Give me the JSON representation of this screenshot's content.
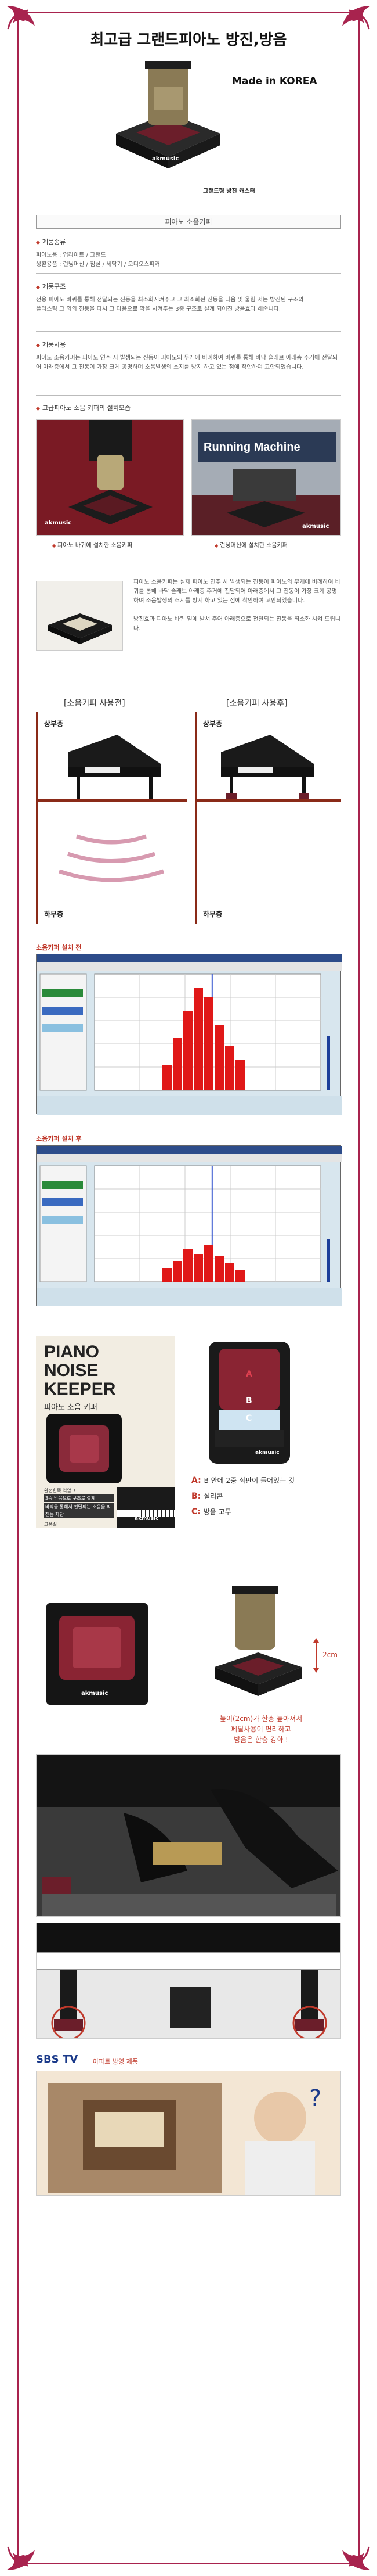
{
  "header": {
    "title": "최고급 그랜드피아노 방진,방음",
    "made_in": "Made in KOREA",
    "hero_caption": "그랜드형 방진 캐스터",
    "hero_watermark": "akmusic"
  },
  "section_bar": "피아노 소음키퍼",
  "features": [
    {
      "title": "제품종류",
      "body": "피아노용 : 업라이트 / 그랜드\n생활용품 : 런닝머신 / 침실 / 세탁기 / 오디오스피커"
    },
    {
      "title": "제품구조",
      "body": "전용 피아노 바퀴를 통해 전달되는 진동을 최소화시켜주고 그 최소화된 진동을 다음 및 울림 저는 방진된 구조와\n플라스틱 그 외의 진동을 다시 그 다음으로 막을 시켜주는 3중 구조로 설계 되어진 방음효과 해줍니다."
    },
    {
      "title": "제품사용",
      "body": "피아노 소음키퍼는 피아노 연주 시 발생되는 진동이 피아노의 무게에 비례하여 바퀴를 통해 바닥 슬래브 아래층 주거에 전달되어 아래층에서 그 진동이 가장 크게 공명하며 소음발생의 소지를 방지 하고 있는 점에 착안하여 고안되었습니다."
    },
    {
      "title": "고급피아노 소음 키퍼의 설치모습",
      "body": ""
    }
  ],
  "install_photos": [
    {
      "caption": "피아노 바퀴에 설치한 소음키퍼",
      "badge": "akmusic"
    },
    {
      "caption": "런닝머신에 설치한 소음키퍼",
      "badge": "akmusic",
      "sign": "Running Machine"
    }
  ],
  "keeper_desc": "피아노 소음키퍼는 실제 피아노 연주 시 발생되는 진동이 피아노의 무게에 비례하여 바퀴를 통해 바닥 슬래브 아래층 주거에 전달되어 아래층에서 그 진동이 가장 크게 공명하며 소음발생의 소지를 방지 하고 있는 점에 착안하여 고안되었습니다.\n\n방진효과 피아노 바퀴 밑에 받쳐 주어 아래층으로 전달되는 진동을 최소화 시켜 드립니다.",
  "before_after": {
    "before_label": "[소음키퍼 사용전]",
    "after_label": "[소음키퍼 사용후]",
    "top_label": "상부층",
    "bottom_label": "하부층"
  },
  "charts": [
    {
      "heading": "소음키퍼 설치 전",
      "chart_data": {
        "type": "bar",
        "title": "",
        "values": [
          22,
          45,
          68,
          88,
          80,
          56,
          38,
          26
        ],
        "ylim": [
          0,
          100
        ],
        "grid": true
      }
    },
    {
      "heading": "소음키퍼 설치 후",
      "chart_data": {
        "type": "bar",
        "title": "",
        "values": [
          12,
          18,
          28,
          24,
          32,
          22,
          16,
          10
        ],
        "ylim": [
          0,
          100
        ],
        "grid": true
      }
    }
  ],
  "product": {
    "title_line1": "PIANO",
    "title_line2": "NOISE",
    "title_line3": "KEEPER",
    "subtitle": "피아노 소음 키퍼",
    "card_lines": [
      "완전한쪽 역암그",
      "3중 방음으로 구조로 설계",
      "바닥을 통해서 전달되는 소음을 막 진동 차단"
    ],
    "card_tag": "고품질",
    "badge": "akmusic",
    "part_a_letter": "A",
    "part_b_letter": "B",
    "part_c_letter": "C",
    "legend": [
      {
        "letter": "A:",
        "text": "B 안에 2중 쇠판이 들어있는 것"
      },
      {
        "letter": "B:",
        "text": "실리콘"
      },
      {
        "letter": "C:",
        "text": "방음 고무"
      }
    ],
    "height_label": "2cm",
    "note": "높이(2cm)가 한층 높아져서\n페달사용이 편리하고\n방음은 한층 강화 !",
    "badge2": "akmusic",
    "badge3": "akmusic"
  },
  "tv": {
    "logo": "SBS TV",
    "caption": "아파트 방영 제품"
  }
}
